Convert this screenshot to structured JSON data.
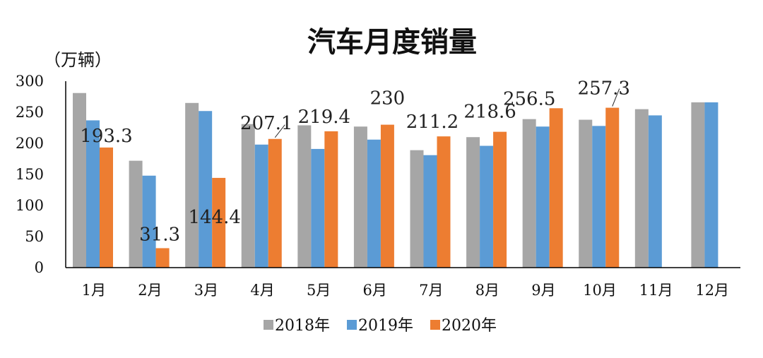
{
  "chart_data": {
    "type": "bar",
    "title": "汽车月度销量",
    "ylabel": "（万辆）",
    "ylim": [
      0,
      300
    ],
    "yticks": [
      0,
      50,
      100,
      150,
      200,
      250,
      300
    ],
    "categories": [
      "1月",
      "2月",
      "3月",
      "4月",
      "5月",
      "6月",
      "7月",
      "8月",
      "9月",
      "10月",
      "11月",
      "12月"
    ],
    "series": [
      {
        "name": "2018年",
        "color": "#a6a6a6",
        "values": [
          281,
          172,
          265,
          231,
          229,
          227,
          189,
          210,
          239,
          238,
          255,
          266
        ]
      },
      {
        "name": "2019年",
        "color": "#5b9bd5",
        "values": [
          237,
          148,
          252,
          198,
          191,
          206,
          181,
          196,
          227,
          228,
          245,
          266
        ]
      },
      {
        "name": "2020年",
        "color": "#ed7d31",
        "values": [
          193.3,
          31.3,
          144.4,
          207.1,
          219.4,
          230,
          211.2,
          218.6,
          256.5,
          257.3,
          null,
          null
        ]
      }
    ],
    "data_labels": [
      {
        "series": 2,
        "index": 0,
        "text": "193.3"
      },
      {
        "series": 2,
        "index": 1,
        "text": "31.3"
      },
      {
        "series": 2,
        "index": 2,
        "text": "144.4"
      },
      {
        "series": 2,
        "index": 3,
        "text": "207.1"
      },
      {
        "series": 2,
        "index": 4,
        "text": "219.4"
      },
      {
        "series": 2,
        "index": 5,
        "text": "230"
      },
      {
        "series": 2,
        "index": 6,
        "text": "211.2"
      },
      {
        "series": 2,
        "index": 7,
        "text": "218.6"
      },
      {
        "series": 2,
        "index": 8,
        "text": "256.5"
      },
      {
        "series": 2,
        "index": 9,
        "text": "257.3"
      }
    ],
    "legend_position": "bottom",
    "grid": false
  }
}
